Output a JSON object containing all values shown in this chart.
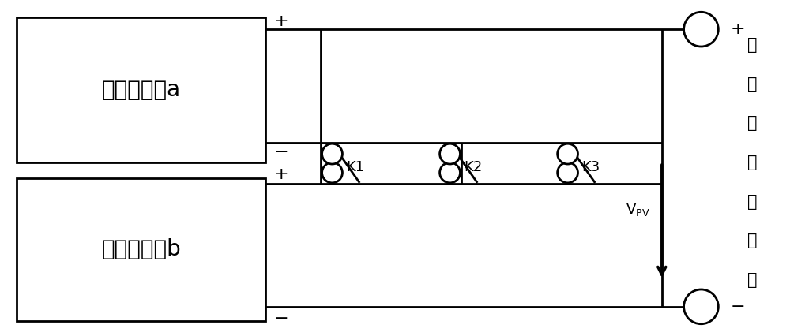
{
  "fig_width": 10.0,
  "fig_height": 4.26,
  "dpi": 100,
  "bg_color": "#ffffff",
  "line_color": "#000000",
  "line_width": 2.0,
  "box_a_label": "子光伏阵列a",
  "box_b_label": "子光伏阵列b",
  "side_label_chars": [
    "总",
    "光",
    "伏",
    "阵",
    "列",
    "电",
    "压"
  ],
  "vpv_main": "V",
  "vpv_sub": "PV",
  "k_labels": [
    "K1",
    "K2",
    "K3"
  ]
}
